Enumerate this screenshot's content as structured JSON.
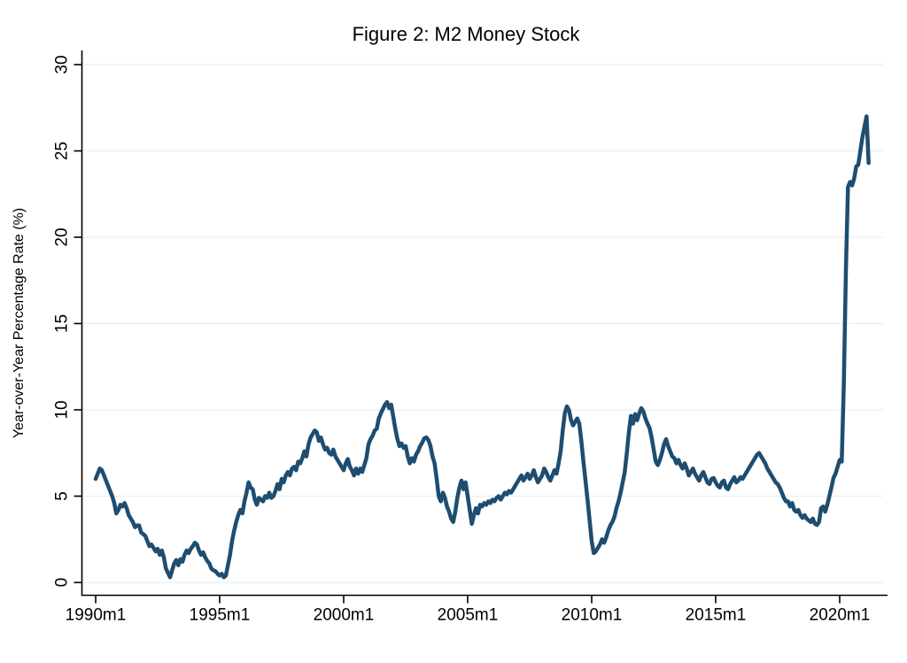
{
  "figure": {
    "title": "Figure 2: M2 Money Stock",
    "title_color": "#1f4e79",
    "line_color": "#1e4d70",
    "grid_color": "#e6f1f3",
    "axis_color": "#000000",
    "background_color": "#ffffff"
  },
  "chart_data": {
    "type": "line",
    "title": "Figure 2: M2 Money Stock",
    "xlabel": "",
    "ylabel": "Year-over-Year Percentage Rate (%)",
    "ylim": [
      0,
      30
    ],
    "y_ticks": [
      0,
      5,
      10,
      15,
      20,
      25,
      30
    ],
    "y_tick_label_rotation_deg": 90,
    "x_tick_labels": [
      "1990m1",
      "1995m1",
      "2000m1",
      "2005m1",
      "2010m1",
      "2015m1",
      "2020m1"
    ],
    "x_tick_interval_months": 60,
    "grid": "horizontal",
    "legend": "none",
    "series": [
      {
        "name": "M2 money stock, year-over-year percentage rate",
        "start": "1990m1",
        "end": "2021m3",
        "frequency": "monthly",
        "values": [
          6.0,
          6.3,
          6.6,
          6.5,
          6.2,
          5.9,
          5.6,
          5.3,
          5.0,
          4.6,
          4.0,
          4.2,
          4.5,
          4.4,
          4.6,
          4.3,
          3.9,
          3.7,
          3.5,
          3.2,
          3.3,
          3.3,
          2.9,
          2.8,
          2.7,
          2.4,
          2.1,
          2.2,
          2.0,
          1.8,
          1.95,
          1.6,
          1.85,
          1.45,
          0.8,
          0.55,
          0.3,
          0.7,
          1.1,
          1.3,
          1.0,
          1.35,
          1.2,
          1.6,
          1.85,
          1.7,
          1.95,
          2.1,
          2.3,
          2.2,
          1.85,
          1.6,
          1.75,
          1.45,
          1.25,
          1.1,
          0.8,
          0.7,
          0.65,
          0.5,
          0.4,
          0.5,
          0.3,
          0.4,
          1.0,
          1.6,
          2.4,
          3.0,
          3.5,
          3.9,
          4.2,
          4.0,
          4.7,
          5.2,
          5.8,
          5.5,
          5.4,
          4.8,
          4.5,
          4.9,
          4.8,
          4.7,
          5.0,
          4.9,
          5.2,
          4.9,
          5.0,
          5.3,
          5.7,
          5.4,
          6.0,
          5.8,
          6.2,
          6.4,
          6.2,
          6.6,
          6.7,
          6.5,
          7.0,
          6.9,
          7.2,
          7.6,
          7.3,
          8.0,
          8.4,
          8.6,
          8.8,
          8.7,
          8.2,
          8.4,
          8.0,
          7.7,
          7.8,
          7.5,
          7.4,
          7.7,
          7.3,
          7.1,
          6.9,
          6.7,
          6.5,
          6.9,
          7.15,
          6.7,
          6.5,
          6.2,
          6.6,
          6.3,
          6.6,
          6.4,
          6.8,
          7.2,
          8.0,
          8.3,
          8.5,
          8.8,
          8.9,
          9.5,
          9.8,
          10.05,
          10.3,
          10.45,
          10.1,
          10.3,
          9.6,
          8.9,
          8.3,
          7.9,
          8.05,
          7.8,
          7.9,
          7.3,
          6.9,
          7.2,
          7.0,
          7.4,
          7.6,
          7.9,
          8.1,
          8.35,
          8.4,
          8.25,
          7.9,
          7.3,
          6.9,
          6.0,
          5.0,
          4.7,
          5.2,
          4.9,
          4.4,
          4.1,
          3.7,
          3.5,
          4.1,
          4.9,
          5.5,
          5.9,
          5.4,
          5.8,
          5.0,
          4.2,
          3.4,
          3.9,
          4.3,
          4.0,
          4.5,
          4.4,
          4.6,
          4.5,
          4.7,
          4.6,
          4.8,
          4.7,
          4.9,
          5.0,
          4.8,
          5.0,
          5.2,
          5.1,
          5.3,
          5.2,
          5.4,
          5.6,
          5.8,
          6.0,
          6.2,
          5.9,
          6.1,
          6.3,
          6.0,
          6.2,
          6.5,
          6.1,
          5.8,
          6.0,
          6.2,
          6.6,
          6.4,
          6.1,
          5.9,
          6.2,
          6.5,
          6.3,
          6.9,
          7.6,
          8.8,
          9.8,
          10.2,
          10.0,
          9.4,
          9.1,
          9.3,
          9.5,
          9.2,
          8.2,
          7.0,
          5.9,
          4.8,
          3.6,
          2.4,
          1.7,
          1.8,
          2.0,
          2.2,
          2.5,
          2.3,
          2.6,
          3.0,
          3.3,
          3.5,
          3.8,
          4.3,
          4.7,
          5.2,
          5.8,
          6.4,
          7.5,
          8.7,
          9.65,
          9.2,
          9.75,
          9.4,
          9.8,
          10.1,
          9.9,
          9.5,
          9.2,
          8.95,
          8.4,
          7.7,
          7.0,
          6.8,
          7.1,
          7.5,
          8.0,
          8.3,
          7.9,
          7.6,
          7.3,
          7.2,
          6.9,
          7.1,
          6.8,
          6.6,
          6.9,
          6.6,
          6.2,
          6.4,
          6.6,
          6.3,
          6.1,
          5.9,
          6.2,
          6.4,
          6.1,
          5.8,
          5.7,
          6.0,
          6.05,
          5.8,
          5.6,
          5.5,
          5.8,
          5.9,
          5.5,
          5.4,
          5.7,
          5.9,
          6.1,
          5.8,
          5.9,
          6.1,
          6.0,
          6.2,
          6.4,
          6.6,
          6.8,
          7.0,
          7.2,
          7.4,
          7.5,
          7.3,
          7.1,
          6.9,
          6.6,
          6.4,
          6.2,
          6.0,
          5.8,
          5.7,
          5.5,
          5.2,
          4.9,
          4.7,
          4.7,
          4.4,
          4.6,
          4.2,
          4.1,
          4.2,
          3.9,
          3.74,
          3.9,
          3.7,
          3.6,
          3.5,
          3.7,
          3.4,
          3.33,
          3.5,
          4.3,
          4.4,
          4.1,
          4.5,
          5.0,
          5.5,
          6.05,
          6.3,
          6.7,
          7.1,
          7.0,
          11.5,
          18.0,
          22.9,
          23.2,
          23.0,
          23.4,
          24.1,
          24.2,
          25.0,
          25.8,
          26.4,
          27.0,
          24.3
        ]
      }
    ]
  }
}
